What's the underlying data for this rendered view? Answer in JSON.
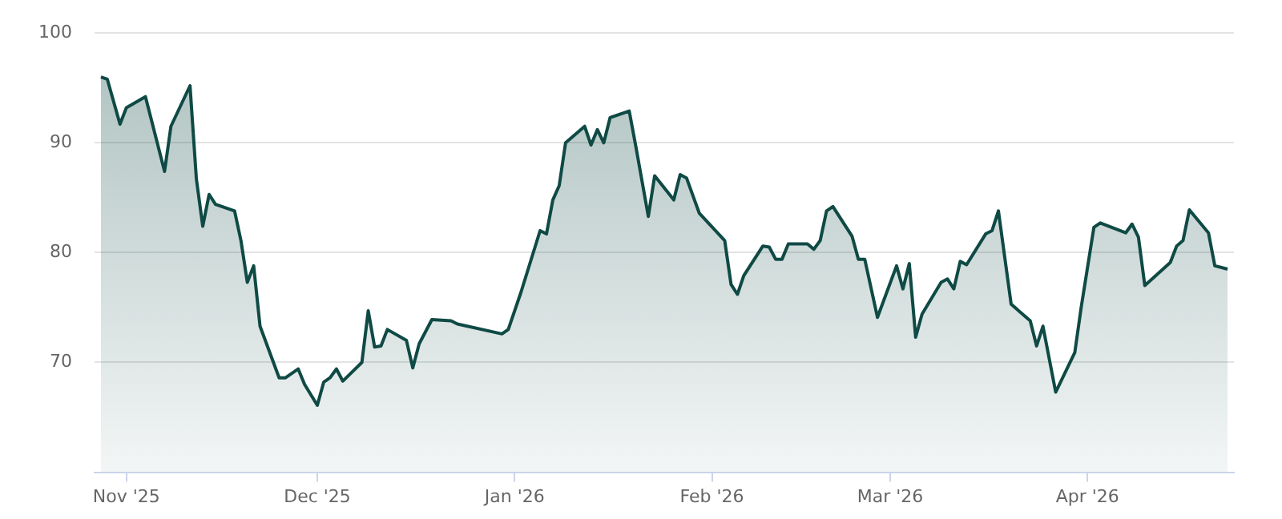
{
  "chart_data": {
    "type": "area",
    "xlim": [
      "2025-10-27",
      "2026-04-24"
    ],
    "ylim": [
      60,
      100
    ],
    "yticks": [
      70,
      80,
      90,
      100
    ],
    "xticks": [
      {
        "value": "2025-11-01",
        "label": "Nov '25"
      },
      {
        "value": "2025-12-01",
        "label": "Dec '25"
      },
      {
        "value": "2026-01-01",
        "label": "Jan '26"
      },
      {
        "value": "2026-02-01",
        "label": "Feb '26"
      },
      {
        "value": "2026-03-01",
        "label": "Mar '26"
      },
      {
        "value": "2026-04-01",
        "label": "Apr '26"
      }
    ],
    "grid": "y",
    "legend": false,
    "marker": "none",
    "line_style": "solid",
    "x": [
      "2025-10-28",
      "2025-10-29",
      "2025-10-31",
      "2025-11-01",
      "2025-11-04",
      "2025-11-07",
      "2025-11-08",
      "2025-11-11",
      "2025-11-12",
      "2025-11-13",
      "2025-11-14",
      "2025-11-15",
      "2025-11-18",
      "2025-11-19",
      "2025-11-20",
      "2025-11-21",
      "2025-11-22",
      "2025-11-25",
      "2025-11-26",
      "2025-11-28",
      "2025-11-29",
      "2025-12-01",
      "2025-12-02",
      "2025-12-03",
      "2025-12-04",
      "2025-12-05",
      "2025-12-08",
      "2025-12-09",
      "2025-12-10",
      "2025-12-11",
      "2025-12-12",
      "2025-12-15",
      "2025-12-16",
      "2025-12-17",
      "2025-12-19",
      "2025-12-22",
      "2025-12-23",
      "2025-12-30",
      "2025-12-31",
      "2026-01-02",
      "2026-01-05",
      "2026-01-06",
      "2026-01-07",
      "2026-01-08",
      "2026-01-09",
      "2026-01-12",
      "2026-01-13",
      "2026-01-14",
      "2026-01-15",
      "2026-01-16",
      "2026-01-19",
      "2026-01-20",
      "2026-01-22",
      "2026-01-23",
      "2026-01-26",
      "2026-01-27",
      "2026-01-28",
      "2026-01-30",
      "2026-02-03",
      "2026-02-04",
      "2026-02-05",
      "2026-02-06",
      "2026-02-09",
      "2026-02-10",
      "2026-02-11",
      "2026-02-12",
      "2026-02-13",
      "2026-02-16",
      "2026-02-17",
      "2026-02-18",
      "2026-02-19",
      "2026-02-20",
      "2026-02-23",
      "2026-02-24",
      "2026-02-25",
      "2026-02-27",
      "2026-03-02",
      "2026-03-03",
      "2026-03-04",
      "2026-03-05",
      "2026-03-06",
      "2026-03-09",
      "2026-03-10",
      "2026-03-11",
      "2026-03-12",
      "2026-03-13",
      "2026-03-16",
      "2026-03-17",
      "2026-03-18",
      "2026-03-20",
      "2026-03-23",
      "2026-03-24",
      "2026-03-25",
      "2026-03-27",
      "2026-03-30",
      "2026-03-31",
      "2026-04-02",
      "2026-04-03",
      "2026-04-07",
      "2026-04-08",
      "2026-04-09",
      "2026-04-10",
      "2026-04-14",
      "2026-04-15",
      "2026-04-16",
      "2026-04-17",
      "2026-04-20",
      "2026-04-21",
      "2026-04-23"
    ],
    "series": [
      {
        "color": "#0f4a45",
        "values": [
          96.0,
          95.8,
          91.7,
          93.2,
          94.2,
          87.4,
          91.5,
          95.2,
          86.7,
          82.4,
          85.3,
          84.4,
          83.8,
          81.1,
          77.3,
          78.8,
          73.3,
          68.6,
          68.6,
          69.4,
          68.0,
          66.1,
          68.2,
          68.6,
          69.4,
          68.3,
          70.0,
          74.7,
          71.4,
          71.5,
          73.0,
          72.0,
          69.5,
          71.7,
          73.9,
          73.8,
          73.5,
          72.6,
          73.0,
          76.4,
          82.0,
          81.7,
          84.8,
          86.1,
          90.0,
          91.5,
          89.8,
          91.2,
          90.0,
          92.3,
          92.9,
          89.8,
          83.3,
          87.0,
          84.8,
          87.1,
          86.8,
          83.6,
          81.1,
          77.1,
          76.2,
          77.9,
          80.6,
          80.5,
          79.4,
          79.4,
          80.8,
          80.8,
          80.3,
          81.1,
          83.8,
          84.2,
          81.5,
          79.4,
          79.4,
          74.1,
          78.8,
          76.7,
          79.0,
          72.3,
          74.4,
          77.3,
          77.6,
          76.7,
          79.2,
          78.9,
          81.7,
          82.0,
          83.8,
          75.3,
          73.8,
          71.5,
          73.3,
          67.3,
          70.9,
          75.0,
          82.3,
          82.7,
          81.8,
          82.6,
          81.4,
          77.0,
          79.1,
          80.6,
          81.1,
          83.9,
          81.8,
          78.8,
          78.5
        ]
      }
    ]
  }
}
